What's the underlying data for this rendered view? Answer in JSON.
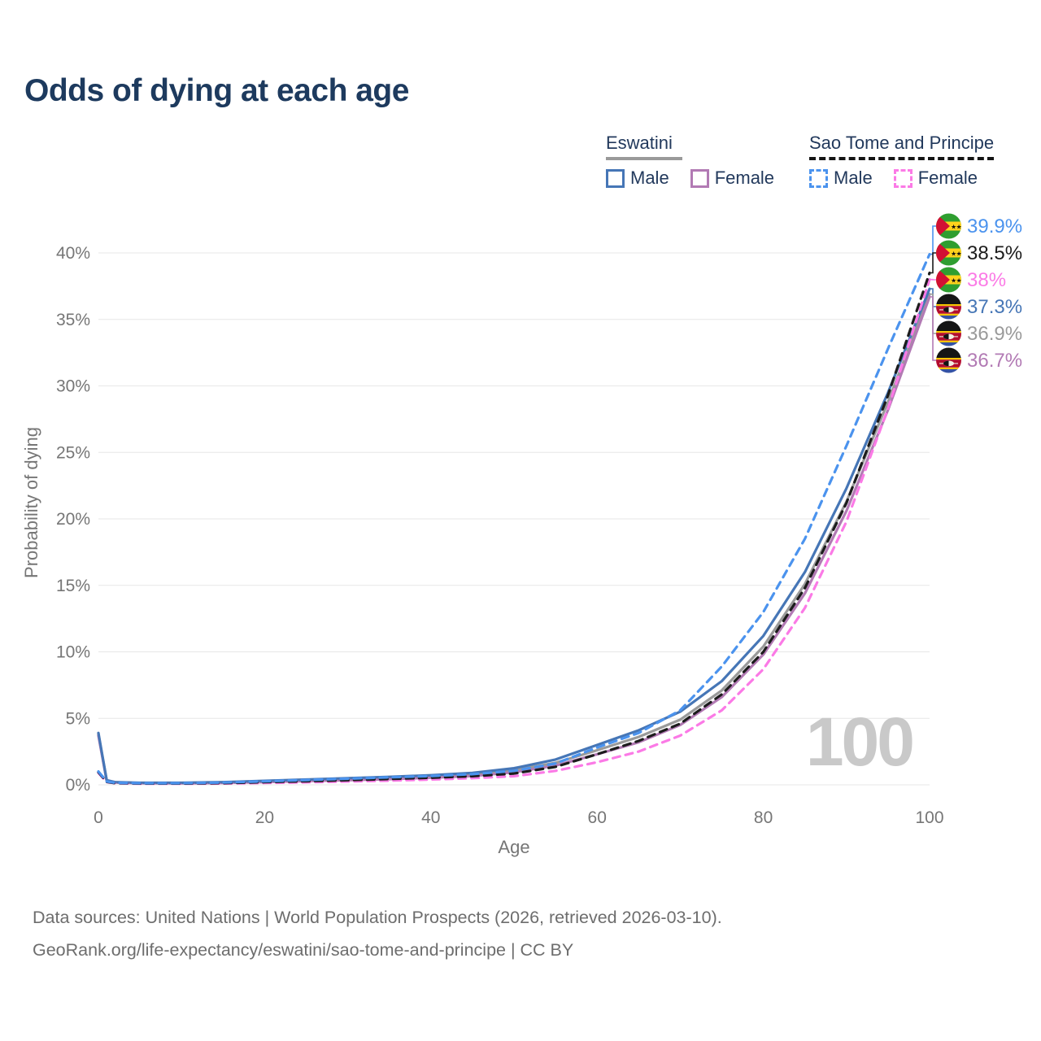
{
  "title": "Odds of dying at each age",
  "legend": {
    "groups": [
      {
        "label": "Eswatini",
        "line_style": "solid",
        "underline_color": "#9a9a9a",
        "items": [
          {
            "label": "Male",
            "color": "#4676b6"
          },
          {
            "label": "Female",
            "color": "#b27ab4"
          }
        ]
      },
      {
        "label": "Sao Tome and Principe",
        "line_style": "dashed",
        "underline_color": "#141414",
        "items": [
          {
            "label": "Male",
            "color": "#4b93ee"
          },
          {
            "label": "Female",
            "color": "#fb7ae6"
          }
        ]
      }
    ]
  },
  "chart_data": {
    "type": "line",
    "title": "Odds of dying at each age",
    "xlabel": "Age",
    "ylabel": "Probability of dying",
    "xlim": [
      0,
      100
    ],
    "ylim": [
      0,
      42
    ],
    "grid": "horizontal",
    "legend_position": "top-right",
    "watermark": "100",
    "xticks": [
      0,
      20,
      40,
      60,
      80,
      100
    ],
    "ytick_values": [
      0,
      5,
      10,
      15,
      20,
      25,
      30,
      35,
      40
    ],
    "ytick_labels": [
      "0%",
      "5%",
      "10%",
      "15%",
      "20%",
      "25%",
      "30%",
      "35%",
      "40%"
    ],
    "x": [
      0,
      1,
      2,
      5,
      10,
      15,
      20,
      25,
      30,
      35,
      40,
      45,
      50,
      55,
      60,
      65,
      70,
      75,
      80,
      85,
      90,
      95,
      100
    ],
    "series": [
      {
        "id": "eswatini-all",
        "name": "Eswatini (both sexes)",
        "color": "#9a9a9a",
        "dash": "solid",
        "flag": "swz",
        "end_value_label": "36.9%",
        "values": [
          3.8,
          0.32,
          0.19,
          0.13,
          0.13,
          0.17,
          0.26,
          0.34,
          0.43,
          0.52,
          0.63,
          0.78,
          1.1,
          1.65,
          2.6,
          3.6,
          4.9,
          7.1,
          10.4,
          15.1,
          21.3,
          28.8,
          36.9
        ]
      },
      {
        "id": "eswatini-female",
        "name": "Eswatini Female",
        "color": "#b27ab4",
        "dash": "solid",
        "flag": "swz",
        "end_value_label": "36.7%",
        "values": [
          3.7,
          0.3,
          0.18,
          0.12,
          0.11,
          0.14,
          0.21,
          0.28,
          0.35,
          0.43,
          0.53,
          0.66,
          0.95,
          1.45,
          2.3,
          3.2,
          4.5,
          6.6,
          9.8,
          14.4,
          20.6,
          28.2,
          36.7
        ]
      },
      {
        "id": "eswatini-male",
        "name": "Eswatini Male",
        "color": "#4676b6",
        "dash": "solid",
        "flag": "swz",
        "end_value_label": "37.3%",
        "values": [
          3.9,
          0.35,
          0.2,
          0.15,
          0.15,
          0.2,
          0.3,
          0.4,
          0.5,
          0.6,
          0.72,
          0.9,
          1.25,
          1.9,
          3.0,
          4.1,
          5.5,
          7.8,
          11.2,
          16.0,
          22.3,
          29.5,
          37.3
        ]
      },
      {
        "id": "stp-female",
        "name": "Sao Tome and Principe Female",
        "color": "#fb7ae6",
        "dash": "dashed",
        "flag": "stp",
        "end_value_label": "38%",
        "values": [
          0.9,
          0.2,
          0.12,
          0.08,
          0.08,
          0.1,
          0.14,
          0.19,
          0.25,
          0.32,
          0.4,
          0.5,
          0.65,
          1.05,
          1.7,
          2.5,
          3.7,
          5.6,
          8.7,
          13.3,
          19.8,
          28.3,
          38.0
        ]
      },
      {
        "id": "stp-all",
        "name": "Sao Tome and Principe (both sexes)",
        "color": "#1c1c1c",
        "dash": "dashed",
        "flag": "stp",
        "end_value_label": "38.5%",
        "values": [
          0.95,
          0.22,
          0.13,
          0.1,
          0.1,
          0.13,
          0.2,
          0.27,
          0.35,
          0.44,
          0.53,
          0.65,
          0.85,
          1.35,
          2.3,
          3.3,
          4.6,
          6.8,
          10.0,
          14.8,
          21.2,
          29.3,
          38.5
        ]
      },
      {
        "id": "stp-male",
        "name": "Sao Tome and Principe Male",
        "color": "#4b93ee",
        "dash": "dashed",
        "flag": "stp",
        "end_value_label": "39.9%",
        "values": [
          1.0,
          0.25,
          0.15,
          0.12,
          0.12,
          0.17,
          0.26,
          0.36,
          0.46,
          0.56,
          0.66,
          0.8,
          1.05,
          1.6,
          2.8,
          3.9,
          5.6,
          8.9,
          13.0,
          18.5,
          25.5,
          32.8,
          39.9
        ]
      }
    ]
  },
  "end_labels": [
    {
      "text": "39.9%",
      "color": "#4b93ee",
      "flag": "stp",
      "series": 5
    },
    {
      "text": "38.5%",
      "color": "#1c1c1c",
      "flag": "stp",
      "series": 4
    },
    {
      "text": "38%",
      "color": "#fb7ae6",
      "flag": "stp",
      "series": 3
    },
    {
      "text": "37.3%",
      "color": "#4676b6",
      "flag": "swz",
      "series": 2
    },
    {
      "text": "36.9%",
      "color": "#9a9a9a",
      "flag": "swz",
      "series": 0
    },
    {
      "text": "36.7%",
      "color": "#b27ab4",
      "flag": "swz",
      "series": 1
    }
  ],
  "footer": {
    "line1": "Data sources: United Nations | World Population Prospects (2026, retrieved 2026-03-10).",
    "line2": "GeoRank.org/life-expectancy/eswatini/sao-tome-and-principe | CC BY"
  }
}
